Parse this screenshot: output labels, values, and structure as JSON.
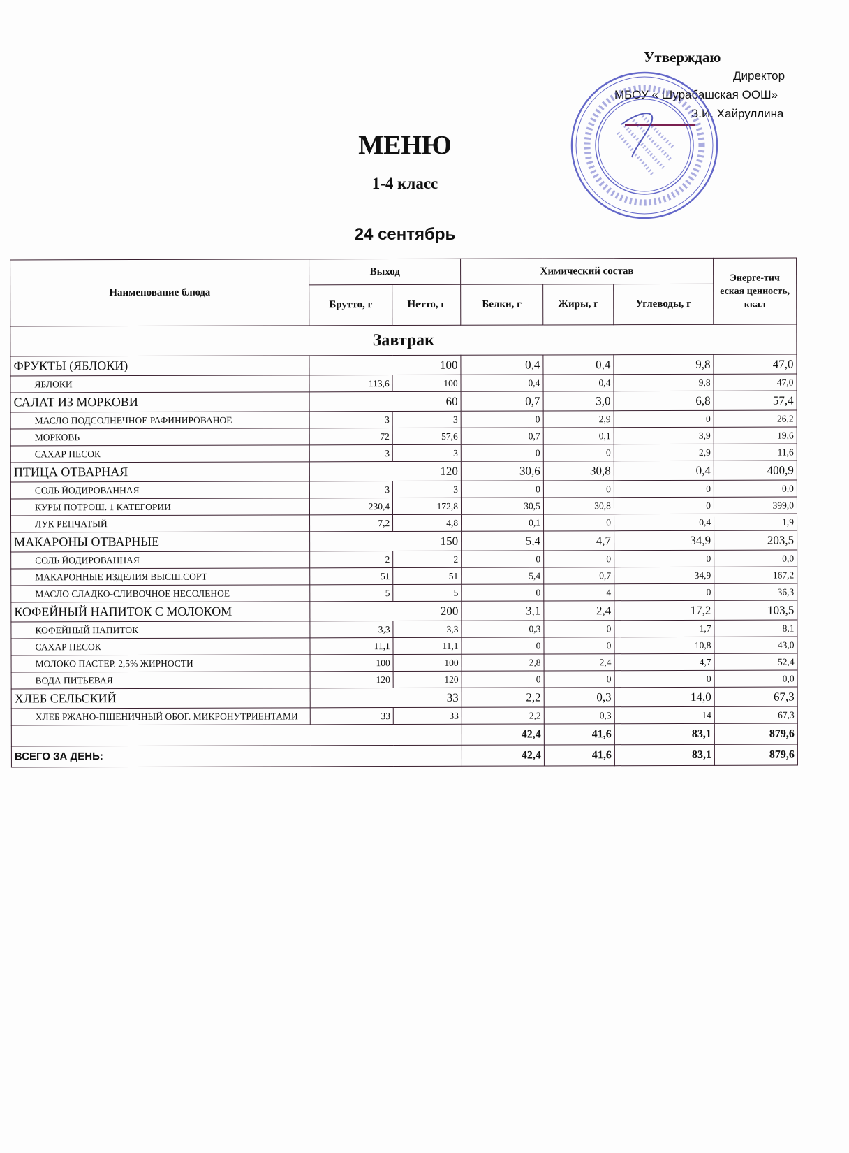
{
  "approval": {
    "heading": "Утверждаю",
    "position": "Директор",
    "organization": "МБОУ « Шурабашская ООШ»",
    "signer": "З.И. Хайруллина",
    "stamp_text": "МУНИЦИПАЛЬНОЕ БЮДЖЕТНОЕ ОБЩЕОБРАЗОВАТЕЛЬНОЕ УЧРЕЖДЕНИЕ ОСНОВНАЯ ОБЩЕОБРАЗОВАТЕЛЬНАЯ ШКОЛА АРСКОГО МУНИЦИПАЛЬНОГО РАЙОНА РЕСПУБЛИКИ ТАТАРСТАН ОГРН 1021606153623 ИНН 1609004677 КПП 160901001",
    "stamp_color": "#4a4fc0"
  },
  "title": "МЕНЮ",
  "grade": "1-4 класс",
  "date": "24 сентябрь",
  "table": {
    "headers": {
      "name": "Наименование блюда",
      "output": "Выход",
      "chemical": "Химический состав",
      "energy": "Энерге-тич еская ценность, ккал",
      "brutto": "Брутто, г",
      "netto": "Нетто, г",
      "protein": "Белки, г",
      "fat": "Жиры, г",
      "carbs": "Углеводы, г"
    },
    "section": "Завтрак",
    "rows": [
      {
        "type": "main",
        "name": "ФРУКТЫ (ЯБЛОКИ)",
        "output": "100",
        "protein": "0,4",
        "fat": "0,4",
        "carbs": "9,8",
        "energy": "47,0"
      },
      {
        "type": "sub",
        "name": "ЯБЛОКИ",
        "brutto": "113,6",
        "netto": "100",
        "protein": "0,4",
        "fat": "0,4",
        "carbs": "9,8",
        "energy": "47,0"
      },
      {
        "type": "main",
        "name": "САЛАТ ИЗ МОРКОВИ",
        "output": "60",
        "protein": "0,7",
        "fat": "3,0",
        "carbs": "6,8",
        "energy": "57,4"
      },
      {
        "type": "sub",
        "name": "МАСЛО ПОДСОЛНЕЧНОЕ РАФИНИРОВАНОЕ",
        "brutto": "3",
        "netto": "3",
        "protein": "0",
        "fat": "2,9",
        "carbs": "0",
        "energy": "26,2"
      },
      {
        "type": "sub",
        "name": "МОРКОВЬ",
        "brutto": "72",
        "netto": "57,6",
        "protein": "0,7",
        "fat": "0,1",
        "carbs": "3,9",
        "energy": "19,6"
      },
      {
        "type": "sub",
        "name": "САХАР ПЕСОК",
        "brutto": "3",
        "netto": "3",
        "protein": "0",
        "fat": "0",
        "carbs": "2,9",
        "energy": "11,6"
      },
      {
        "type": "main",
        "name": "ПТИЦА ОТВАРНАЯ",
        "output": "120",
        "protein": "30,6",
        "fat": "30,8",
        "carbs": "0,4",
        "energy": "400,9"
      },
      {
        "type": "sub",
        "name": "СОЛЬ   ЙОДИРОВАННАЯ",
        "brutto": "3",
        "netto": "3",
        "protein": "0",
        "fat": "0",
        "carbs": "0",
        "energy": "0,0"
      },
      {
        "type": "sub",
        "name": "КУРЫ ПОТРОШ. 1 КАТЕГОРИИ",
        "brutto": "230,4",
        "netto": "172,8",
        "protein": "30,5",
        "fat": "30,8",
        "carbs": "0",
        "energy": "399,0"
      },
      {
        "type": "sub",
        "name": "ЛУК РЕПЧАТЫЙ",
        "brutto": "7,2",
        "netto": "4,8",
        "protein": "0,1",
        "fat": "0",
        "carbs": "0,4",
        "energy": "1,9"
      },
      {
        "type": "main",
        "name": "МАКАРОНЫ ОТВАРНЫЕ",
        "output": "150",
        "protein": "5,4",
        "fat": "4,7",
        "carbs": "34,9",
        "energy": "203,5"
      },
      {
        "type": "sub",
        "name": "СОЛЬ   ЙОДИРОВАННАЯ",
        "brutto": "2",
        "netto": "2",
        "protein": "0",
        "fat": "0",
        "carbs": "0",
        "energy": "0,0"
      },
      {
        "type": "sub",
        "name": "МАКАРОННЫЕ ИЗДЕЛИЯ ВЫСШ.СОРТ",
        "brutto": "51",
        "netto": "51",
        "protein": "5,4",
        "fat": "0,7",
        "carbs": "34,9",
        "energy": "167,2"
      },
      {
        "type": "sub",
        "name": "МАСЛО СЛАДКО-СЛИВОЧНОЕ НЕСОЛЕНОЕ",
        "brutto": "5",
        "netto": "5",
        "protein": "0",
        "fat": "4",
        "carbs": "0",
        "energy": "36,3"
      },
      {
        "type": "main",
        "name": "КОФЕЙНЫЙ НАПИТОК С МОЛОКОМ",
        "output": "200",
        "protein": "3,1",
        "fat": "2,4",
        "carbs": "17,2",
        "energy": "103,5"
      },
      {
        "type": "sub",
        "name": "КОФЕЙНЫЙ НАПИТОК",
        "brutto": "3,3",
        "netto": "3,3",
        "protein": "0,3",
        "fat": "0",
        "carbs": "1,7",
        "energy": "8,1"
      },
      {
        "type": "sub",
        "name": "САХАР ПЕСОК",
        "brutto": "11,1",
        "netto": "11,1",
        "protein": "0",
        "fat": "0",
        "carbs": "10,8",
        "energy": "43,0"
      },
      {
        "type": "sub",
        "name": "МОЛОКО ПАСТЕР. 2,5% ЖИРНОСТИ",
        "brutto": "100",
        "netto": "100",
        "protein": "2,8",
        "fat": "2,4",
        "carbs": "4,7",
        "energy": "52,4"
      },
      {
        "type": "sub",
        "name": "ВОДА ПИТЬЕВАЯ",
        "brutto": "120",
        "netto": "120",
        "protein": "0",
        "fat": "0",
        "carbs": "0",
        "energy": "0,0"
      },
      {
        "type": "main",
        "name": "ХЛЕБ СЕЛЬСКИЙ",
        "output": "33",
        "protein": "2,2",
        "fat": "0,3",
        "carbs": "14,0",
        "energy": "67,3"
      },
      {
        "type": "sub",
        "name": "ХЛЕБ РЖАНО-ПШЕНИЧНЫЙ ОБОГ. МИКРОНУТРИЕНТАМИ",
        "brutto": "33",
        "netto": "33",
        "protein": "2,2",
        "fat": "0,3",
        "carbs": "14",
        "energy": "67,3"
      }
    ],
    "subtotal": {
      "label": "",
      "protein": "42,4",
      "fat": "41,6",
      "carbs": "83,1",
      "energy": "879,6"
    },
    "total": {
      "label": "ВСЕГО ЗА ДЕНЬ:",
      "protein": "42,4",
      "fat": "41,6",
      "carbs": "83,1",
      "energy": "879,6"
    }
  }
}
